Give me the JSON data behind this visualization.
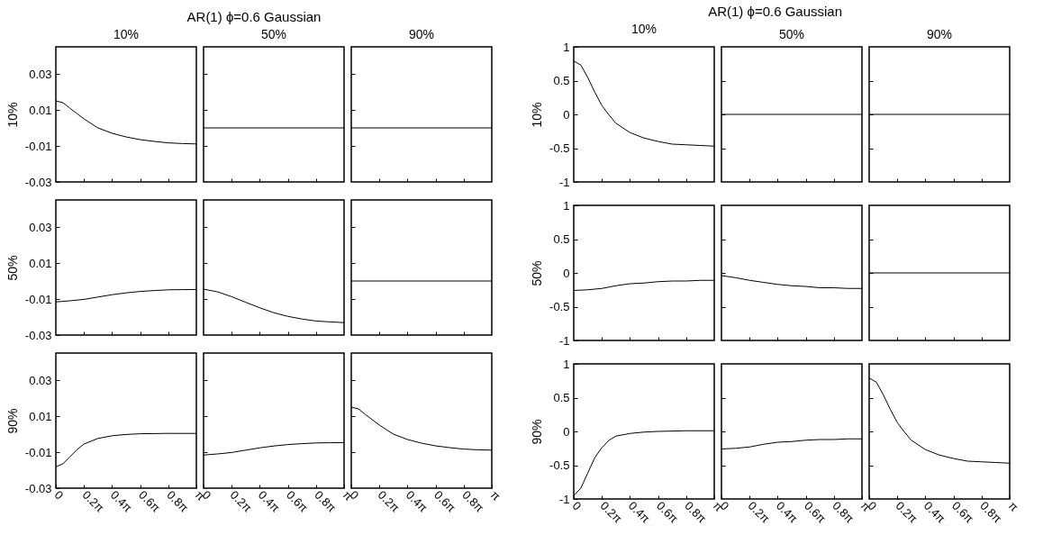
{
  "chart_data": [
    {
      "type": "line",
      "subtitle": "10%",
      "ylabel": "10%",
      "tick_labels": "y",
      "xlim": [
        0,
        3.1416
      ],
      "xticks": [
        {
          "value": 0.6283,
          "label": null
        },
        {
          "value": 1.2566,
          "label": null
        },
        {
          "value": 1.885,
          "label": null
        },
        {
          "value": 2.5133,
          "label": null
        }
      ],
      "ylim": [
        -0.03,
        0.045
      ],
      "yticks": [
        -0.03,
        -0.01,
        0.01,
        0.03
      ],
      "x": [
        0,
        0.16,
        0.31,
        0.47,
        0.63,
        0.94,
        1.26,
        1.57,
        1.88,
        2.2,
        2.51,
        2.83,
        3.14
      ],
      "series": [
        {
          "color": "#000000",
          "values": [
            0.015,
            0.014,
            0.011,
            0.008,
            0.005,
            0.0,
            -0.003,
            -0.005,
            -0.0065,
            -0.0075,
            -0.0083,
            -0.0087,
            -0.0089
          ]
        }
      ]
    },
    {
      "type": "line",
      "title": "AR(1) ϕ=0.6 Gaussian",
      "subtitle": "50%",
      "tick_labels": false,
      "xlim": [
        0,
        3.1416
      ],
      "xticks": [
        {
          "value": 0.6283,
          "label": null
        },
        {
          "value": 1.2566,
          "label": null
        },
        {
          "value": 1.885,
          "label": null
        },
        {
          "value": 2.5133,
          "label": null
        }
      ],
      "ylim": [
        -0.03,
        0.045
      ],
      "yticks": [
        {
          "value": -0.01,
          "label": null
        },
        {
          "value": 0.01,
          "label": null
        },
        {
          "value": 0.03,
          "label": null
        }
      ],
      "x": [
        0,
        3.14
      ],
      "series": [
        {
          "color": "#000000",
          "values": [
            0,
            0
          ]
        }
      ]
    },
    {
      "type": "line",
      "subtitle": "90%",
      "tick_labels": false,
      "xlim": [
        0,
        3.1416
      ],
      "xticks": [
        {
          "value": 0.6283,
          "label": null
        },
        {
          "value": 1.2566,
          "label": null
        },
        {
          "value": 1.885,
          "label": null
        },
        {
          "value": 2.5133,
          "label": null
        }
      ],
      "ylim": [
        -0.03,
        0.045
      ],
      "yticks": [
        {
          "value": -0.01,
          "label": null
        },
        {
          "value": 0.01,
          "label": null
        },
        {
          "value": 0.03,
          "label": null
        }
      ],
      "x": [
        0,
        3.14
      ],
      "series": [
        {
          "color": "#000000",
          "values": [
            0,
            0
          ]
        }
      ]
    },
    {
      "type": "line",
      "ylabel": "50%",
      "tick_labels": "y",
      "xlim": [
        0,
        3.1416
      ],
      "xticks": [
        {
          "value": 0.6283,
          "label": null
        },
        {
          "value": 1.2566,
          "label": null
        },
        {
          "value": 1.885,
          "label": null
        },
        {
          "value": 2.5133,
          "label": null
        }
      ],
      "ylim": [
        -0.03,
        0.045
      ],
      "yticks": [
        -0.03,
        -0.01,
        0.01,
        0.03
      ],
      "x": [
        0,
        0.31,
        0.63,
        0.94,
        1.26,
        1.57,
        1.88,
        2.2,
        2.51,
        2.83,
        3.14
      ],
      "series": [
        {
          "color": "#000000",
          "values": [
            -0.0116,
            -0.011,
            -0.0102,
            -0.0089,
            -0.0076,
            -0.0066,
            -0.0058,
            -0.0053,
            -0.0049,
            -0.0048,
            -0.0047
          ]
        }
      ]
    },
    {
      "type": "line",
      "tick_labels": false,
      "xlim": [
        0,
        3.1416
      ],
      "xticks": [
        {
          "value": 0.6283,
          "label": null
        },
        {
          "value": 1.2566,
          "label": null
        },
        {
          "value": 1.885,
          "label": null
        },
        {
          "value": 2.5133,
          "label": null
        }
      ],
      "ylim": [
        -0.03,
        0.045
      ],
      "yticks": [
        {
          "value": -0.01,
          "label": null
        },
        {
          "value": 0.01,
          "label": null
        },
        {
          "value": 0.03,
          "label": null
        }
      ],
      "x": [
        0,
        0.31,
        0.63,
        0.94,
        1.26,
        1.57,
        1.88,
        2.2,
        2.51,
        2.83,
        3.14
      ],
      "series": [
        {
          "color": "#000000",
          "values": [
            -0.0045,
            -0.006,
            -0.0087,
            -0.0118,
            -0.0149,
            -0.0176,
            -0.0196,
            -0.0211,
            -0.0222,
            -0.0227,
            -0.0231
          ]
        }
      ]
    },
    {
      "type": "line",
      "tick_labels": false,
      "xlim": [
        0,
        3.1416
      ],
      "xticks": [
        {
          "value": 0.6283,
          "label": null
        },
        {
          "value": 1.2566,
          "label": null
        },
        {
          "value": 1.885,
          "label": null
        },
        {
          "value": 2.5133,
          "label": null
        }
      ],
      "ylim": [
        -0.03,
        0.045
      ],
      "yticks": [
        {
          "value": -0.01,
          "label": null
        },
        {
          "value": 0.01,
          "label": null
        },
        {
          "value": 0.03,
          "label": null
        }
      ],
      "x": [
        0,
        3.14
      ],
      "series": [
        {
          "color": "#000000",
          "values": [
            0,
            0
          ]
        }
      ]
    },
    {
      "type": "line",
      "ylabel": "90%",
      "xlim": [
        0,
        3.1416
      ],
      "xticks": [
        {
          "value": 0,
          "label": "0"
        },
        {
          "value": 0.6283,
          "label": "0.2π"
        },
        {
          "value": 1.2566,
          "label": "0.4π"
        },
        {
          "value": 1.885,
          "label": "0.6π"
        },
        {
          "value": 2.5133,
          "label": "0.8π"
        },
        {
          "value": 3.1416,
          "label": "π"
        }
      ],
      "ylim": [
        -0.03,
        0.045
      ],
      "yticks": [
        -0.03,
        -0.01,
        0.01,
        0.03
      ],
      "x": [
        0,
        0.16,
        0.31,
        0.47,
        0.63,
        0.94,
        1.26,
        1.57,
        1.88,
        2.51,
        3.14
      ],
      "series": [
        {
          "color": "#000000",
          "values": [
            -0.0182,
            -0.0164,
            -0.0127,
            -0.0087,
            -0.0055,
            -0.0024,
            -0.0009,
            -0.0002,
            0.0002,
            0.0004,
            0.0004
          ]
        }
      ]
    },
    {
      "type": "line",
      "tick_labels": "x",
      "xlim": [
        0,
        3.1416
      ],
      "xticks": [
        {
          "value": 0,
          "label": "0"
        },
        {
          "value": 0.6283,
          "label": "0.2π"
        },
        {
          "value": 1.2566,
          "label": "0.4π"
        },
        {
          "value": 1.885,
          "label": "0.6π"
        },
        {
          "value": 2.5133,
          "label": "0.8π"
        },
        {
          "value": 3.1416,
          "label": "π"
        }
      ],
      "ylim": [
        -0.03,
        0.045
      ],
      "yticks": [
        {
          "value": -0.01,
          "label": null
        },
        {
          "value": 0.01,
          "label": null
        },
        {
          "value": 0.03,
          "label": null
        }
      ],
      "x": [
        0,
        0.31,
        0.63,
        0.94,
        1.26,
        1.57,
        1.88,
        2.2,
        2.51,
        2.83,
        3.14
      ],
      "series": [
        {
          "color": "#000000",
          "values": [
            -0.0116,
            -0.011,
            -0.0102,
            -0.0089,
            -0.0076,
            -0.0066,
            -0.0058,
            -0.0053,
            -0.0049,
            -0.0048,
            -0.0047
          ]
        }
      ]
    },
    {
      "type": "line",
      "tick_labels": "x",
      "xlim": [
        0,
        3.1416
      ],
      "xticks": [
        {
          "value": 0,
          "label": "0"
        },
        {
          "value": 0.6283,
          "label": "0.2π"
        },
        {
          "value": 1.2566,
          "label": "0.4π"
        },
        {
          "value": 1.885,
          "label": "0.6π"
        },
        {
          "value": 2.5133,
          "label": "0.8π"
        },
        {
          "value": 3.1416,
          "label": "π"
        }
      ],
      "ylim": [
        -0.03,
        0.045
      ],
      "yticks": [
        {
          "value": -0.01,
          "label": null
        },
        {
          "value": 0.01,
          "label": null
        },
        {
          "value": 0.03,
          "label": null
        }
      ],
      "x": [
        0,
        0.16,
        0.31,
        0.47,
        0.63,
        0.94,
        1.26,
        1.57,
        1.88,
        2.2,
        2.51,
        2.83,
        3.14
      ],
      "series": [
        {
          "color": "#000000",
          "values": [
            0.015,
            0.014,
            0.011,
            0.008,
            0.005,
            0.0,
            -0.003,
            -0.005,
            -0.0065,
            -0.0075,
            -0.0083,
            -0.0087,
            -0.0089
          ]
        }
      ]
    },
    {
      "type": "line",
      "subtitle": "10%",
      "ylabel": "10%",
      "tick_labels": "y",
      "xlim": [
        0,
        3.1416
      ],
      "xticks": [
        {
          "value": 0.6283,
          "label": null
        },
        {
          "value": 1.2566,
          "label": null
        },
        {
          "value": 1.885,
          "label": null
        },
        {
          "value": 2.5133,
          "label": null
        }
      ],
      "ylim": [
        -1,
        1
      ],
      "yticks": [
        -1,
        -0.5,
        0,
        0.5,
        1
      ],
      "x": [
        0,
        0.16,
        0.31,
        0.47,
        0.63,
        0.79,
        0.94,
        1.26,
        1.57,
        1.88,
        2.2,
        2.51,
        2.83,
        3.14
      ],
      "series": [
        {
          "color": "#000000",
          "values": [
            0.79,
            0.73,
            0.55,
            0.33,
            0.13,
            -0.01,
            -0.13,
            -0.27,
            -0.35,
            -0.4,
            -0.44,
            -0.45,
            -0.46,
            -0.47
          ]
        }
      ]
    },
    {
      "type": "line",
      "title": "AR(1) ϕ=0.6 Gaussian",
      "subtitle": "50%",
      "tick_labels": false,
      "xlim": [
        0,
        3.1416
      ],
      "xticks": [
        {
          "value": 0.6283,
          "label": null
        },
        {
          "value": 1.2566,
          "label": null
        },
        {
          "value": 1.885,
          "label": null
        },
        {
          "value": 2.5133,
          "label": null
        }
      ],
      "ylim": [
        -1,
        1
      ],
      "yticks": [
        {
          "value": -0.5,
          "label": null
        },
        {
          "value": 0,
          "label": null
        },
        {
          "value": 0.5,
          "label": null
        }
      ],
      "x": [
        0,
        3.14
      ],
      "series": [
        {
          "color": "#000000",
          "values": [
            0,
            0
          ]
        }
      ]
    },
    {
      "type": "line",
      "subtitle": "90%",
      "tick_labels": false,
      "xlim": [
        0,
        3.1416
      ],
      "xticks": [
        {
          "value": 0.6283,
          "label": null
        },
        {
          "value": 1.2566,
          "label": null
        },
        {
          "value": 1.885,
          "label": null
        },
        {
          "value": 2.5133,
          "label": null
        }
      ],
      "ylim": [
        -1,
        1
      ],
      "yticks": [
        {
          "value": -0.5,
          "label": null
        },
        {
          "value": 0,
          "label": null
        },
        {
          "value": 0.5,
          "label": null
        }
      ],
      "x": [
        0,
        3.14
      ],
      "series": [
        {
          "color": "#000000",
          "values": [
            0,
            0
          ]
        }
      ]
    },
    {
      "type": "line",
      "ylabel": "50%",
      "tick_labels": "y",
      "xlim": [
        0,
        3.1416
      ],
      "xticks": [
        {
          "value": 0.6283,
          "label": null
        },
        {
          "value": 1.2566,
          "label": null
        },
        {
          "value": 1.885,
          "label": null
        },
        {
          "value": 2.5133,
          "label": null
        }
      ],
      "ylim": [
        -1,
        1
      ],
      "yticks": [
        -1,
        -0.5,
        0,
        0.5,
        1
      ],
      "x": [
        0,
        0.31,
        0.63,
        0.94,
        1.26,
        1.57,
        1.88,
        2.2,
        2.51,
        2.83,
        3.14
      ],
      "series": [
        {
          "color": "#000000",
          "values": [
            -0.26,
            -0.25,
            -0.23,
            -0.19,
            -0.16,
            -0.15,
            -0.13,
            -0.12,
            -0.12,
            -0.11,
            -0.11
          ]
        }
      ]
    },
    {
      "type": "line",
      "tick_labels": false,
      "xlim": [
        0,
        3.1416
      ],
      "xticks": [
        {
          "value": 0.6283,
          "label": null
        },
        {
          "value": 1.2566,
          "label": null
        },
        {
          "value": 1.885,
          "label": null
        },
        {
          "value": 2.5133,
          "label": null
        }
      ],
      "ylim": [
        -1,
        1
      ],
      "yticks": [
        {
          "value": -0.5,
          "label": null
        },
        {
          "value": 0,
          "label": null
        },
        {
          "value": 0.5,
          "label": null
        }
      ],
      "x": [
        0,
        0.31,
        0.63,
        0.94,
        1.26,
        1.57,
        1.88,
        2.2,
        2.51,
        2.83,
        3.14
      ],
      "series": [
        {
          "color": "#000000",
          "values": [
            -0.04,
            -0.07,
            -0.11,
            -0.14,
            -0.17,
            -0.19,
            -0.2,
            -0.22,
            -0.22,
            -0.23,
            -0.23
          ]
        }
      ]
    },
    {
      "type": "line",
      "tick_labels": false,
      "xlim": [
        0,
        3.1416
      ],
      "xticks": [
        {
          "value": 0.6283,
          "label": null
        },
        {
          "value": 1.2566,
          "label": null
        },
        {
          "value": 1.885,
          "label": null
        },
        {
          "value": 2.5133,
          "label": null
        }
      ],
      "ylim": [
        -1,
        1
      ],
      "yticks": [
        {
          "value": -0.5,
          "label": null
        },
        {
          "value": 0,
          "label": null
        },
        {
          "value": 0.5,
          "label": null
        }
      ],
      "x": [
        0,
        3.14
      ],
      "series": [
        {
          "color": "#000000",
          "values": [
            0,
            0
          ]
        }
      ]
    },
    {
      "type": "line",
      "ylabel": "90%",
      "xlim": [
        0,
        3.1416
      ],
      "xticks": [
        {
          "value": 0,
          "label": "0"
        },
        {
          "value": 0.6283,
          "label": "0.2π"
        },
        {
          "value": 1.2566,
          "label": "0.4π"
        },
        {
          "value": 1.885,
          "label": "0.6π"
        },
        {
          "value": 2.5133,
          "label": "0.8π"
        },
        {
          "value": 3.1416,
          "label": "π"
        }
      ],
      "ylim": [
        -1,
        1
      ],
      "yticks": [
        -1,
        -0.5,
        0,
        0.5,
        1
      ],
      "x": [
        0,
        0.16,
        0.31,
        0.47,
        0.63,
        0.79,
        0.94,
        1.26,
        1.57,
        1.88,
        2.51,
        3.14
      ],
      "series": [
        {
          "color": "#000000",
          "values": [
            -0.95,
            -0.84,
            -0.62,
            -0.39,
            -0.24,
            -0.13,
            -0.07,
            -0.03,
            -0.01,
            0.0,
            0.01,
            0.01
          ]
        }
      ]
    },
    {
      "type": "line",
      "tick_labels": "x",
      "xlim": [
        0,
        3.1416
      ],
      "xticks": [
        {
          "value": 0,
          "label": "0"
        },
        {
          "value": 0.6283,
          "label": "0.2π"
        },
        {
          "value": 1.2566,
          "label": "0.4π"
        },
        {
          "value": 1.885,
          "label": "0.6π"
        },
        {
          "value": 2.5133,
          "label": "0.8π"
        },
        {
          "value": 3.1416,
          "label": "π"
        }
      ],
      "ylim": [
        -1,
        1
      ],
      "yticks": [
        {
          "value": -0.5,
          "label": null
        },
        {
          "value": 0,
          "label": null
        },
        {
          "value": 0.5,
          "label": null
        }
      ],
      "x": [
        0,
        0.31,
        0.63,
        0.94,
        1.26,
        1.57,
        1.88,
        2.2,
        2.51,
        2.83,
        3.14
      ],
      "series": [
        {
          "color": "#000000",
          "values": [
            -0.26,
            -0.25,
            -0.23,
            -0.19,
            -0.16,
            -0.15,
            -0.13,
            -0.12,
            -0.12,
            -0.11,
            -0.11
          ]
        }
      ]
    },
    {
      "type": "line",
      "tick_labels": "x",
      "xlim": [
        0,
        3.1416
      ],
      "xticks": [
        {
          "value": 0,
          "label": "0"
        },
        {
          "value": 0.6283,
          "label": "0.2π"
        },
        {
          "value": 1.2566,
          "label": "0.4π"
        },
        {
          "value": 1.885,
          "label": "0.6π"
        },
        {
          "value": 2.5133,
          "label": "0.8π"
        },
        {
          "value": 3.1416,
          "label": "π"
        }
      ],
      "ylim": [
        -1,
        1
      ],
      "yticks": [
        {
          "value": -0.5,
          "label": null
        },
        {
          "value": 0,
          "label": null
        },
        {
          "value": 0.5,
          "label": null
        }
      ],
      "x": [
        0,
        0.16,
        0.31,
        0.47,
        0.63,
        0.79,
        0.94,
        1.26,
        1.57,
        1.88,
        2.2,
        2.51,
        2.83,
        3.14
      ],
      "series": [
        {
          "color": "#000000",
          "values": [
            0.79,
            0.73,
            0.55,
            0.33,
            0.13,
            -0.01,
            -0.13,
            -0.27,
            -0.35,
            -0.4,
            -0.44,
            -0.45,
            -0.46,
            -0.47
          ]
        }
      ]
    }
  ]
}
